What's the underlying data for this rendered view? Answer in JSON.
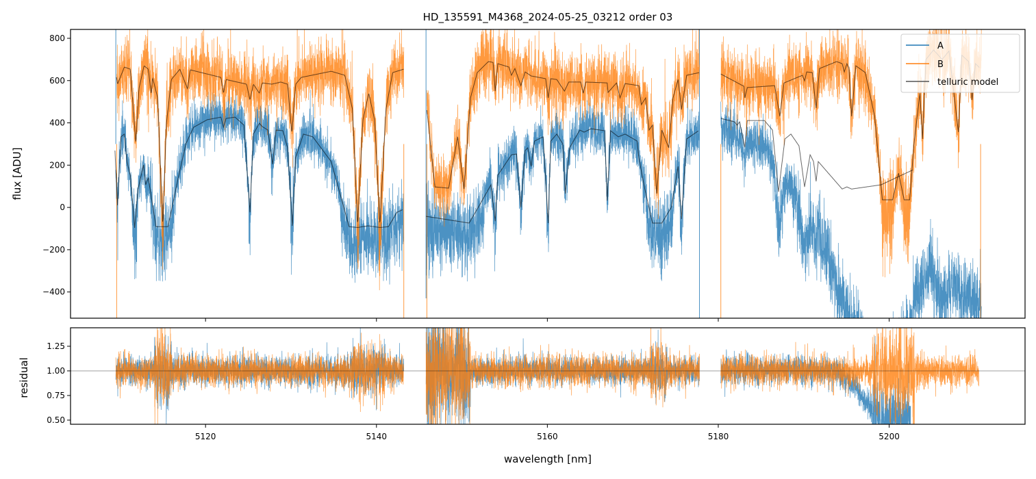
{
  "chart_data": {
    "type": "line",
    "title": "HD_135591_M4368_2024-05-25_03212  order 03",
    "xlabel": "wavelength [nm]",
    "panels": [
      {
        "name": "flux",
        "ylabel": "flux [ADU]",
        "ylim": [
          -524,
          842
        ],
        "yticks": [
          -400,
          -200,
          0,
          200,
          400,
          600,
          800
        ],
        "ytick_labels": [
          "−400",
          "−200",
          "0",
          "200",
          "400",
          "600",
          "800"
        ]
      },
      {
        "name": "residual",
        "ylabel": "residual",
        "ylim": [
          0.458,
          1.4375
        ],
        "yticks": [
          0.5,
          0.75,
          1.0,
          1.25
        ],
        "ytick_labels": [
          "0.50",
          "0.75",
          "1.00",
          "1.25"
        ],
        "hline": 1.0
      }
    ],
    "xlim": [
      5104.2,
      5215.9
    ],
    "xticks": [
      5120,
      5140,
      5160,
      5180,
      5200
    ],
    "xtick_labels": [
      "5120",
      "5140",
      "5160",
      "5180",
      "5200"
    ],
    "legend": {
      "placement": "top-right",
      "entries": [
        "A",
        "B",
        "telluric model"
      ]
    },
    "colors": {
      "A": "#1f77b4",
      "B": "#ff7f0e",
      "model": "#333333"
    },
    "segments": [
      [
        5109.5,
        5143.2
      ],
      [
        5145.8,
        5177.8
      ],
      [
        5180.3,
        5210.8
      ]
    ],
    "edge_spikes": {
      "A": [
        [
          5109.5,
          842
        ],
        [
          5145.8,
          842
        ],
        [
          5145.8,
          -430
        ],
        [
          5177.8,
          842
        ],
        [
          5177.8,
          -524
        ]
      ],
      "B": [
        [
          5109.6,
          -524
        ],
        [
          5143.2,
          -524
        ],
        [
          5145.9,
          -524
        ],
        [
          5180.3,
          -524
        ],
        [
          5210.7,
          -524
        ]
      ]
    },
    "model_A": [
      [
        [
          5109.4,
          269
        ],
        [
          5109.7,
          10
        ],
        [
          5110.1,
          334
        ],
        [
          5110.5,
          347
        ],
        [
          5110.8,
          217
        ],
        [
          5111.2,
          152
        ],
        [
          5111.7,
          -97
        ],
        [
          5112.1,
          87
        ],
        [
          5112.75,
          201
        ],
        [
          5113.0,
          107
        ],
        [
          5113.3,
          139
        ],
        [
          5114.2,
          -91
        ],
        [
          5115.6,
          -91
        ],
        [
          5116.8,
          139
        ],
        [
          5117.7,
          301
        ],
        [
          5118.6,
          379
        ],
        [
          5120.2,
          415
        ],
        [
          5121.8,
          427
        ],
        [
          5122.1,
          379
        ],
        [
          5122.4,
          421
        ],
        [
          5123.45,
          427
        ],
        [
          5124.5,
          389
        ],
        [
          5125.2,
          -23
        ],
        [
          5125.6,
          347
        ],
        [
          5126.3,
          398
        ],
        [
          5126.65,
          382
        ],
        [
          5127.3,
          366
        ],
        [
          5127.85,
          204
        ],
        [
          5128.25,
          366
        ],
        [
          5129.05,
          363
        ],
        [
          5129.6,
          282
        ],
        [
          5130.15,
          -87
        ],
        [
          5130.55,
          236
        ],
        [
          5131.45,
          347
        ],
        [
          5132.55,
          334
        ],
        [
          5134.7,
          217
        ],
        [
          5136.8,
          -91
        ],
        [
          5137.8,
          -95
        ],
        [
          5139.0,
          -87
        ],
        [
          5140.4,
          -95
        ],
        [
          5141.4,
          -91
        ],
        [
          5142.4,
          -23
        ],
        [
          5143.1,
          -10
        ]
      ],
      [
        [
          5145.8,
          -42
        ],
        [
          5150.85,
          -74
        ],
        [
          5152.05,
          10
        ],
        [
          5153.4,
          107
        ],
        [
          5153.9,
          -65
        ],
        [
          5154.2,
          152
        ],
        [
          5155.8,
          249
        ],
        [
          5156.4,
          253
        ],
        [
          5156.9,
          0
        ],
        [
          5157.4,
          269
        ],
        [
          5157.7,
          282
        ],
        [
          5158.1,
          194
        ],
        [
          5158.5,
          314
        ],
        [
          5159.5,
          334
        ],
        [
          5160.1,
          -74
        ],
        [
          5160.4,
          314
        ],
        [
          5161.1,
          347
        ],
        [
          5161.8,
          301
        ],
        [
          5162.1,
          65
        ],
        [
          5162.6,
          282
        ],
        [
          5163.8,
          366
        ],
        [
          5164.3,
          356
        ],
        [
          5165.1,
          372
        ],
        [
          5166.7,
          363
        ],
        [
          5167.0,
          32
        ],
        [
          5167.4,
          363
        ],
        [
          5168.3,
          334
        ],
        [
          5169.1,
          347
        ],
        [
          5170.5,
          314
        ],
        [
          5170.7,
          236
        ],
        [
          5171.3,
          107
        ],
        [
          5172.3,
          -74
        ],
        [
          5173.4,
          -74
        ],
        [
          5174.5,
          0
        ],
        [
          5175.3,
          194
        ],
        [
          5175.7,
          -55
        ],
        [
          5176.3,
          324
        ],
        [
          5177.7,
          363
        ]
      ],
      [
        [
          5180.3,
          421
        ],
        [
          5181.9,
          405
        ],
        [
          5182.2,
          389
        ],
        [
          5182.5,
          405
        ],
        [
          5183.1,
          285
        ],
        [
          5183.4,
          411
        ],
        [
          5185.4,
          411
        ],
        [
          5186.35,
          366
        ],
        [
          5187.05,
          74
        ],
        [
          5187.8,
          324
        ],
        [
          5188.5,
          347
        ],
        [
          5189.45,
          291
        ],
        [
          5190.1,
          97
        ],
        [
          5190.75,
          249
        ],
        [
          5191.15,
          217
        ],
        [
          5191.45,
          123
        ],
        [
          5191.7,
          217
        ],
        [
          5194.5,
          87
        ],
        [
          5195.05,
          97
        ],
        [
          5195.6,
          87
        ],
        [
          5199.05,
          107
        ],
        [
          5202.8,
          178
        ]
      ]
    ],
    "model_B": [
      [
        [
          5109.58,
          615
        ],
        [
          5109.7,
          583
        ],
        [
          5110.5,
          664
        ],
        [
          5111.2,
          654
        ],
        [
          5111.85,
          301
        ],
        [
          5112.2,
          560
        ],
        [
          5112.8,
          670
        ],
        [
          5113.3,
          654
        ],
        [
          5113.65,
          534
        ],
        [
          5113.8,
          615
        ],
        [
          5114.4,
          518
        ],
        [
          5115.0,
          -87
        ],
        [
          5115.4,
          389
        ],
        [
          5116.0,
          605
        ],
        [
          5117.0,
          654
        ],
        [
          5117.9,
          560
        ],
        [
          5118.2,
          651
        ],
        [
          5121.8,
          615
        ],
        [
          5122.1,
          540
        ],
        [
          5122.4,
          605
        ],
        [
          5124.8,
          583
        ],
        [
          5125.2,
          508
        ],
        [
          5125.6,
          583
        ],
        [
          5126.3,
          540
        ],
        [
          5126.65,
          589
        ],
        [
          5127.75,
          583
        ],
        [
          5128.8,
          593
        ],
        [
          5129.6,
          583
        ],
        [
          5130.1,
          350
        ],
        [
          5130.55,
          583
        ],
        [
          5131.2,
          615
        ],
        [
          5134.7,
          644
        ],
        [
          5136.3,
          625
        ],
        [
          5137.2,
          463
        ],
        [
          5137.8,
          -87
        ],
        [
          5138.4,
          411
        ],
        [
          5139.1,
          540
        ],
        [
          5139.8,
          411
        ],
        [
          5140.4,
          -87
        ],
        [
          5141.1,
          463
        ],
        [
          5141.9,
          638
        ],
        [
          5143.2,
          654
        ]
      ],
      [
        [
          5145.9,
          460
        ],
        [
          5146.85,
          97
        ],
        [
          5148.45,
          91
        ],
        [
          5149.5,
          334
        ],
        [
          5150.25,
          87
        ],
        [
          5151.0,
          518
        ],
        [
          5151.8,
          638
        ],
        [
          5153.1,
          690
        ],
        [
          5153.65,
          686
        ],
        [
          5153.9,
          550
        ],
        [
          5154.2,
          680
        ],
        [
          5155.5,
          664
        ],
        [
          5155.8,
          625
        ],
        [
          5156.2,
          657
        ],
        [
          5156.9,
          576
        ],
        [
          5157.4,
          641
        ],
        [
          5158.1,
          622
        ],
        [
          5159.8,
          609
        ],
        [
          5160.1,
          518
        ],
        [
          5160.4,
          609
        ],
        [
          5161.1,
          605
        ],
        [
          5162.0,
          550
        ],
        [
          5162.5,
          593
        ],
        [
          5163.9,
          593
        ],
        [
          5164.2,
          540
        ],
        [
          5164.5,
          593
        ],
        [
          5167.0,
          589
        ],
        [
          5167.1,
          544
        ],
        [
          5168.1,
          589
        ],
        [
          5168.5,
          518
        ],
        [
          5169.1,
          586
        ],
        [
          5170.7,
          576
        ],
        [
          5171.0,
          486
        ],
        [
          5171.5,
          518
        ],
        [
          5171.9,
          366
        ],
        [
          5172.3,
          389
        ],
        [
          5172.8,
          65
        ],
        [
          5173.4,
          366
        ],
        [
          5174.2,
          282
        ],
        [
          5174.7,
          518
        ],
        [
          5175.3,
          605
        ],
        [
          5175.7,
          463
        ],
        [
          5176.3,
          625
        ],
        [
          5177.8,
          638
        ]
      ],
      [
        [
          5180.3,
          631
        ],
        [
          5183.0,
          573
        ],
        [
          5183.1,
          518
        ],
        [
          5183.4,
          567
        ],
        [
          5186.6,
          576
        ],
        [
          5187.2,
          431
        ],
        [
          5187.7,
          589
        ],
        [
          5189.85,
          625
        ],
        [
          5190.1,
          599
        ],
        [
          5190.35,
          641
        ],
        [
          5191.0,
          638
        ],
        [
          5191.45,
          470
        ],
        [
          5191.85,
          657
        ],
        [
          5193.85,
          690
        ],
        [
          5194.5,
          680
        ],
        [
          5194.75,
          641
        ],
        [
          5195.05,
          680
        ],
        [
          5195.3,
          657
        ],
        [
          5195.6,
          431
        ],
        [
          5196.1,
          670
        ],
        [
          5197.2,
          638
        ],
        [
          5198.3,
          431
        ],
        [
          5199.2,
          36
        ],
        [
          5200.4,
          36
        ],
        [
          5201.1,
          162
        ],
        [
          5201.75,
          36
        ],
        [
          5202.4,
          36
        ],
        [
          5202.9,
          301
        ],
        [
          5203.6,
          540
        ],
        [
          5203.9,
          324
        ],
        [
          5204.3,
          700
        ],
        [
          5205.2,
          745
        ],
        [
          5206.2,
          700
        ],
        [
          5207.0,
          740
        ],
        [
          5208.1,
          356
        ],
        [
          5208.5,
          720
        ],
        [
          5209.3,
          690
        ],
        [
          5209.7,
          508
        ],
        [
          5210.1,
          680
        ],
        [
          5210.6,
          660
        ]
      ]
    ],
    "observed_A_trend_segment3": [
      [
        5180.3,
        380
      ],
      [
        5183,
        330
      ],
      [
        5186,
        280
      ],
      [
        5188,
        160
      ],
      [
        5190,
        120
      ],
      [
        5192,
        80
      ],
      [
        5194,
        -60
      ],
      [
        5196,
        -250
      ],
      [
        5198,
        -420
      ],
      [
        5199.5,
        -480
      ],
      [
        5201,
        -450
      ],
      [
        5202,
        -350
      ],
      [
        5203.5,
        -350
      ],
      [
        5205,
        -220
      ],
      [
        5206,
        -400
      ],
      [
        5207.5,
        -300
      ],
      [
        5209,
        -350
      ],
      [
        5210.7,
        -420
      ]
    ],
    "noise_sigma": {
      "A": 55,
      "B": 75,
      "residual_A": 0.07,
      "residual_B": 0.08
    },
    "residual_A_trend_segment3": [
      [
        5180.3,
        1.0
      ],
      [
        5194,
        1.0
      ],
      [
        5196,
        0.85
      ],
      [
        5198,
        0.6
      ],
      [
        5200,
        0.45
      ],
      [
        5202,
        0.5
      ]
    ],
    "residual_noise_boost": [
      [
        5114,
        5116,
        2.5
      ],
      [
        5137,
        5141,
        1.8
      ],
      [
        5145.8,
        5151,
        4
      ],
      [
        5172,
        5174,
        2
      ],
      [
        5198,
        5203,
        3
      ]
    ]
  }
}
